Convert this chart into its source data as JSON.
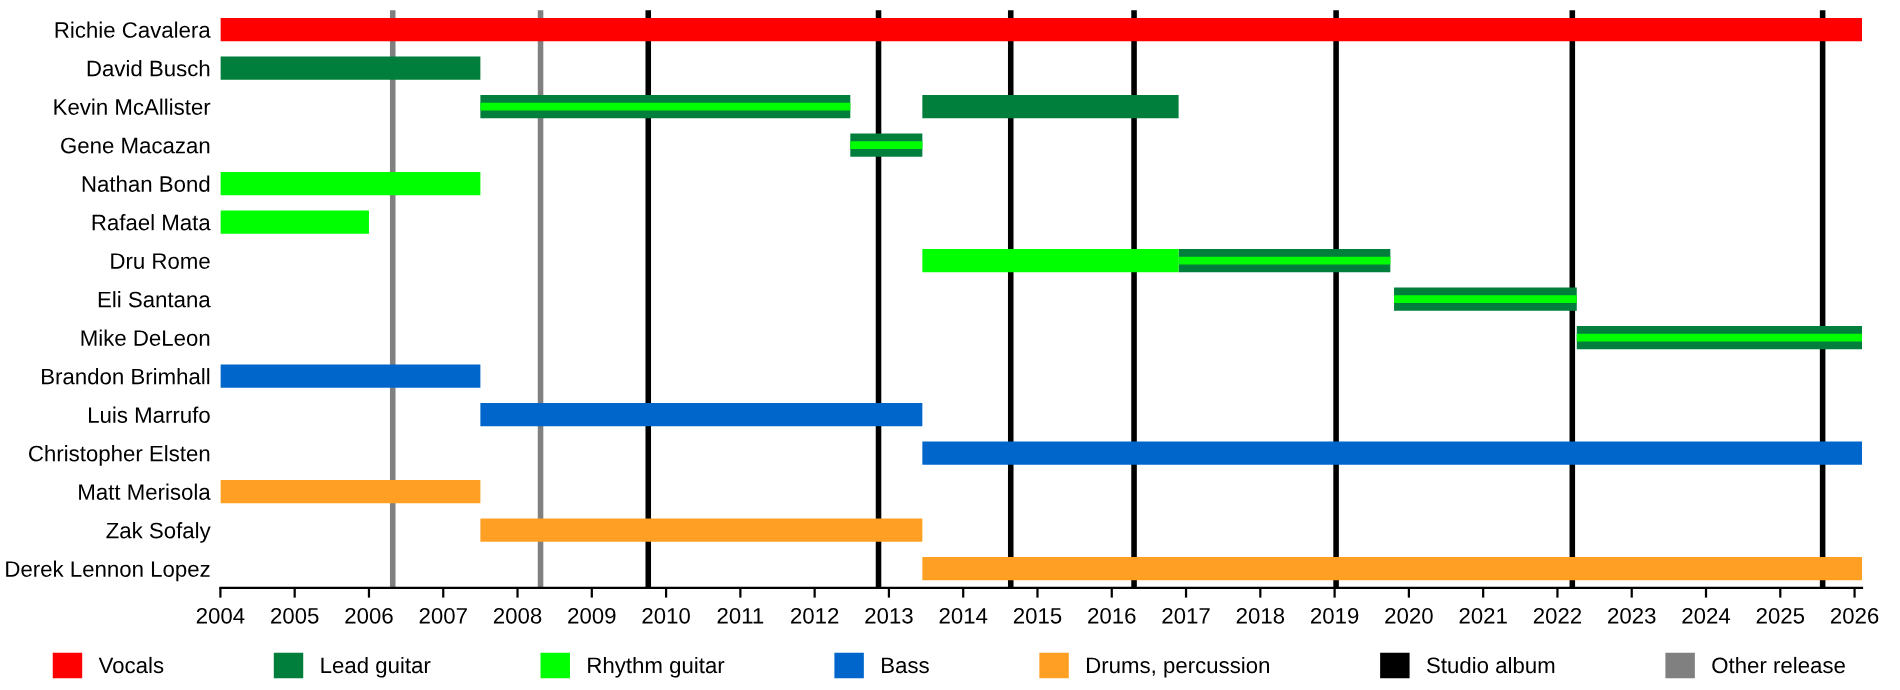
{
  "chart_data": {
    "type": "bar",
    "orientation": "horizontal",
    "categories": [
      "Richie Cavalera",
      "David Busch",
      "Kevin McAllister",
      "Gene Macazan",
      "Nathan Bond",
      "Rafael Mata",
      "Dru Rome",
      "Eli Santana",
      "Mike DeLeon",
      "Brandon Brimhall",
      "Luis Marrufo",
      "Christopher Elsten",
      "Matt Merisola",
      "Zak Sofaly",
      "Derek Lennon Lopez"
    ],
    "series": [
      {
        "name": "Vocals",
        "color": "#ff0000",
        "base": [
          2004,
          null,
          null,
          null,
          null,
          null,
          null,
          null,
          null,
          null,
          null,
          null,
          null,
          null,
          null
        ],
        "values": [
          22.1,
          null,
          null,
          null,
          null,
          null,
          null,
          null,
          null,
          null,
          null,
          null,
          null,
          null,
          null
        ]
      },
      {
        "name": "Lead guitar",
        "color": "#007f3c",
        "base": [
          null,
          2004,
          2007.5,
          2012.48,
          null,
          null,
          2016.9,
          2019.8,
          2022.26,
          null,
          null,
          null,
          null,
          null,
          null
        ],
        "values": [
          null,
          3.5,
          4.98,
          0.97,
          null,
          null,
          2.85,
          2.46,
          3.84,
          null,
          null,
          null,
          null,
          null,
          null
        ]
      },
      {
        "color": "#007f3c",
        "base": [
          null,
          null,
          2013.45,
          null,
          null,
          null,
          null,
          null,
          null,
          null,
          null,
          null,
          null,
          null,
          null
        ],
        "values": [
          null,
          null,
          3.45,
          null,
          null,
          null,
          null,
          null,
          null,
          null,
          null,
          null,
          null,
          null,
          null
        ]
      },
      {
        "name": "Rhythm guitar",
        "color": "#00ff00",
        "base": [
          null,
          null,
          2007.5,
          2012.48,
          null,
          null,
          2016.9,
          2019.8,
          2022.26,
          null,
          null,
          null,
          null,
          null,
          null
        ],
        "values": [
          null,
          null,
          4.98,
          0.97,
          null,
          null,
          2.85,
          2.46,
          3.84,
          null,
          null,
          null,
          null,
          null,
          null
        ]
      },
      {
        "color": "#00ff00",
        "base": [
          null,
          null,
          null,
          null,
          2004,
          2004,
          2013.45,
          null,
          null,
          null,
          null,
          null,
          null,
          null,
          null
        ],
        "values": [
          null,
          null,
          null,
          null,
          3.5,
          2.0,
          3.45,
          null,
          null,
          null,
          null,
          null,
          null,
          null,
          null
        ]
      },
      {
        "name": "Bass",
        "color": "#0066cc",
        "base": [
          null,
          null,
          null,
          null,
          null,
          null,
          null,
          null,
          null,
          2004,
          2007.5,
          2013.45,
          null,
          null,
          null
        ],
        "values": [
          null,
          null,
          null,
          null,
          null,
          null,
          null,
          null,
          null,
          3.5,
          5.95,
          12.65,
          null,
          null,
          null
        ]
      },
      {
        "name": "Drums, percussion",
        "color": "#ffa024",
        "base": [
          null,
          null,
          null,
          null,
          null,
          null,
          null,
          null,
          null,
          null,
          null,
          null,
          2004,
          2007.5,
          2013.45
        ],
        "values": [
          null,
          null,
          null,
          null,
          null,
          null,
          null,
          null,
          null,
          null,
          null,
          null,
          3.5,
          5.95,
          12.65
        ]
      }
    ],
    "ref_lines": [
      {
        "axis": "x",
        "value": 2009.76,
        "label": "Studio album",
        "color": "#000000"
      },
      {
        "axis": "x",
        "value": 2012.86,
        "color": "#000000"
      },
      {
        "axis": "x",
        "value": 2014.64,
        "color": "#000000"
      },
      {
        "axis": "x",
        "value": 2016.3,
        "color": "#000000"
      },
      {
        "axis": "x",
        "value": 2019.02,
        "color": "#000000"
      },
      {
        "axis": "x",
        "value": 2022.2,
        "color": "#000000"
      },
      {
        "axis": "x",
        "value": 2025.57,
        "color": "#000000"
      },
      {
        "axis": "x",
        "value": 2006.32,
        "label": "Other release",
        "color": "#808080"
      },
      {
        "axis": "x",
        "value": 2008.31,
        "color": "#808080"
      }
    ],
    "xlim": [
      2004,
      2026.1
    ],
    "xticks": [
      2004,
      2005,
      2006,
      2007,
      2008,
      2009,
      2010,
      2011,
      2012,
      2013,
      2014,
      2015,
      2016,
      2017,
      2018,
      2019,
      2020,
      2021,
      2022,
      2023,
      2024,
      2025,
      2026
    ],
    "legend": "bottom",
    "grid": false
  }
}
